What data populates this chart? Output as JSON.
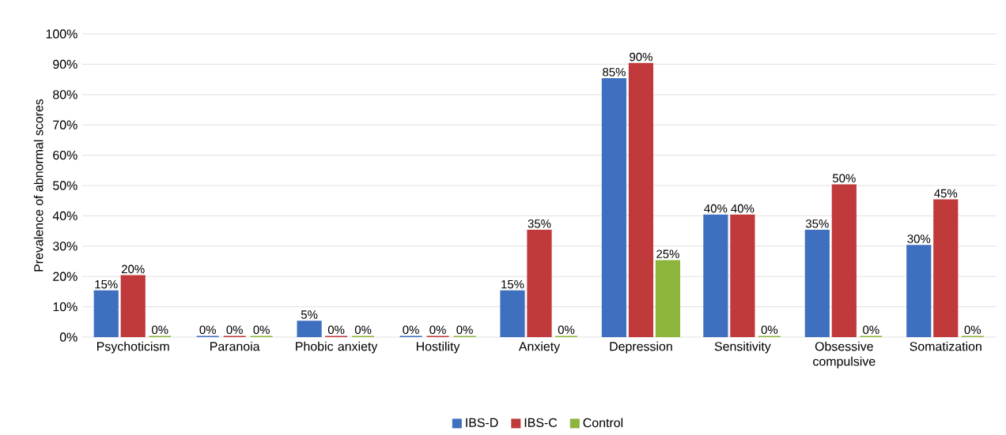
{
  "chart_data": {
    "type": "bar",
    "ylabel": "Prevalence of abnormal scores",
    "categories": [
      "Psychoticism",
      "Paranoia",
      "Phobic anxiety",
      "Hostility",
      "Anxiety",
      "Depression",
      "Sensitivity",
      "Obsessive compulsive",
      "Somatization"
    ],
    "series": [
      {
        "name": "IBS-D",
        "color": "#3f6fbf",
        "values": [
          15,
          0,
          5,
          0,
          15,
          85,
          40,
          35,
          30
        ],
        "value_labels": [
          "15%",
          "0%",
          "5%",
          "0%",
          "15%",
          "85%",
          "40%",
          "35%",
          "30%"
        ]
      },
      {
        "name": "IBS-C",
        "color": "#c0393b",
        "values": [
          20,
          0,
          0,
          0,
          35,
          90,
          40,
          50,
          45
        ],
        "value_labels": [
          "20%",
          "0%",
          "0%",
          "0%",
          "35%",
          "90%",
          "40%",
          "50%",
          "45%"
        ]
      },
      {
        "name": "Control",
        "color": "#8db43c",
        "values": [
          0,
          0,
          0,
          0,
          0,
          25,
          0,
          0,
          0
        ],
        "value_labels": [
          "0%",
          "0%",
          "0%",
          "0%",
          "0%",
          "25%",
          "0%",
          "0%",
          "0%"
        ]
      }
    ],
    "ylim": [
      0,
      100
    ],
    "yticks": [
      {
        "value": 0,
        "label": "0%"
      },
      {
        "value": 10,
        "label": "10%"
      },
      {
        "value": 20,
        "label": "20%"
      },
      {
        "value": 30,
        "label": "30%"
      },
      {
        "value": 40,
        "label": "40%"
      },
      {
        "value": 50,
        "label": "50%"
      },
      {
        "value": 60,
        "label": "60%"
      },
      {
        "value": 70,
        "label": "70%"
      },
      {
        "value": 80,
        "label": "80%"
      },
      {
        "value": 90,
        "label": "90%"
      },
      {
        "value": 100,
        "label": "100%"
      }
    ],
    "grid": "y",
    "legend": "bottom"
  }
}
